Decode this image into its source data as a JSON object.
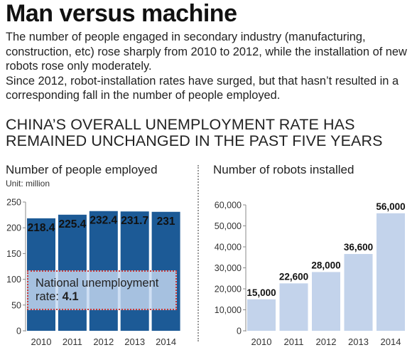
{
  "headline": "Man versus machine",
  "intro": [
    "The number of people engaged in secondary industry (manufacturing, construction, etc) rose sharply from 2010 to 2012, while the installation of new robots rose only moderately.",
    "Since 2012, robot-installation rates have surged, but that hasn’t resulted in a corresponding fall in the number of people employed."
  ],
  "subhead": [
    "China’s overall unemployment rate has",
    "remained unchanged in the past five years"
  ],
  "colors": {
    "employed_bar": "#1c5a96",
    "robot_bar": "#c3d3eb",
    "axis": "#888888",
    "box_border": "#c73a3a"
  },
  "chart_data": [
    {
      "type": "bar",
      "title": "Number of people employed",
      "unit": "Unit: million",
      "categories": [
        "2010",
        "2011",
        "2012",
        "2013",
        "2014"
      ],
      "values": [
        218.4,
        225.4,
        232.4,
        231.7,
        231
      ],
      "labels": [
        "218.4",
        "225.4",
        "232.4",
        "231.7",
        "231"
      ],
      "yticks": [
        0,
        50,
        100,
        150,
        200,
        250
      ],
      "ylim": [
        0,
        250
      ],
      "grid": false,
      "annotation": {
        "label": "National unemployment rate:",
        "value": "4.1",
        "ylim": [
          37,
          113
        ]
      }
    },
    {
      "type": "bar",
      "title": "Number of robots installed",
      "categories": [
        "2010",
        "2011",
        "2012",
        "2013",
        "2014"
      ],
      "values": [
        15000,
        22600,
        28000,
        36600,
        56000
      ],
      "labels": [
        "15,000",
        "22,600",
        "28,000",
        "36,600",
        "56,000"
      ],
      "yticks": [
        0,
        10000,
        20000,
        30000,
        40000,
        50000,
        60000
      ],
      "ytick_labels": [
        "0",
        "10,000",
        "20,000",
        "30,000",
        "40,000",
        "50,000",
        "60,000"
      ],
      "ylim": [
        0,
        60000
      ],
      "grid": false
    }
  ]
}
